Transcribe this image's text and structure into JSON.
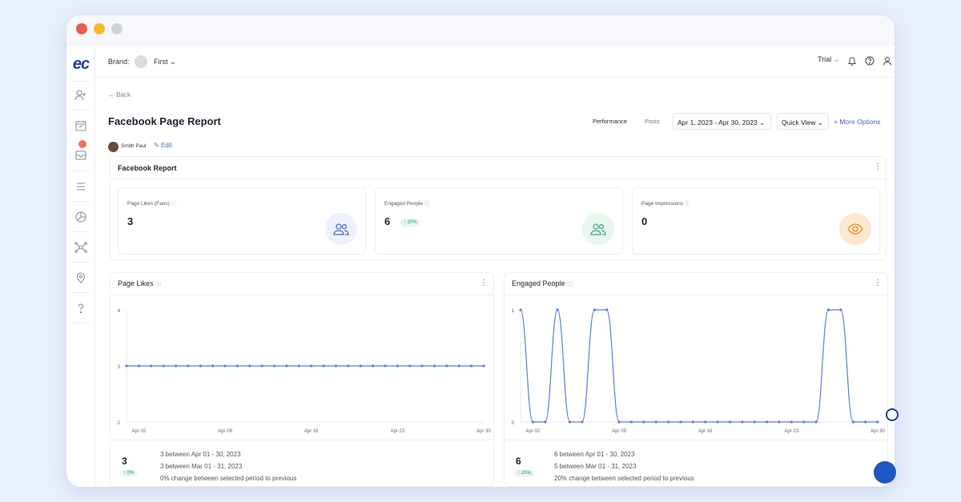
{
  "topbar": {
    "brand_label": "Brand:",
    "brand_name": "First",
    "plan_label": "Trial"
  },
  "sidebar": {
    "logo_text": "ec",
    "icons": [
      "add-user-icon",
      "calendar-icon",
      "inbox-icon",
      "list-icon",
      "pie-chart-icon",
      "network-icon",
      "location-icon",
      "help-icon"
    ]
  },
  "page": {
    "back_label": "Back",
    "title": "Facebook Page Report",
    "tabs": [
      "Performance",
      "Posts"
    ],
    "date_range": "Apr 1, 2023 - Apr 30, 2023",
    "quick_view": "Quick View",
    "more_options": "More Options",
    "author": "Smith Paul",
    "edit_label": "Edit"
  },
  "report": {
    "title": "Facebook Report",
    "metrics": [
      {
        "label": "Page Likes (Fans)",
        "value": "3",
        "change": null,
        "icon": "users-icon",
        "accent": "#4767c7",
        "bg": "#eef1fb"
      },
      {
        "label": "Engaged People",
        "value": "6",
        "change": "20%",
        "icon": "users-icon",
        "accent": "#3eaa76",
        "bg": "#e8f6ee"
      },
      {
        "label": "Page Impressions",
        "value": "0",
        "change": null,
        "icon": "eye-icon",
        "accent": "#f08a24",
        "bg": "#fde8d0"
      }
    ]
  },
  "chart_data": [
    {
      "type": "line",
      "title": "Page Likes",
      "xticks": [
        "Apr 02",
        "Apr 09",
        "Apr 16",
        "Apr 23",
        "Apr 30"
      ],
      "yticks": [
        "2",
        "3",
        "4"
      ],
      "ylim": [
        2,
        4
      ],
      "x": [
        1,
        2,
        3,
        4,
        5,
        6,
        7,
        8,
        9,
        10,
        11,
        12,
        13,
        14,
        15,
        16,
        17,
        18,
        19,
        20,
        21,
        22,
        23,
        24,
        25,
        26,
        27,
        28,
        29,
        30
      ],
      "series": [
        {
          "values": [
            3,
            3,
            3,
            3,
            3,
            3,
            3,
            3,
            3,
            3,
            3,
            3,
            3,
            3,
            3,
            3,
            3,
            3,
            3,
            3,
            3,
            3,
            3,
            3,
            3,
            3,
            3,
            3,
            3,
            3
          ]
        }
      ],
      "color": "#5b7ed6",
      "summary": {
        "value": "3",
        "change": "0%",
        "line1": "3 between Apr 01 - 30, 2023",
        "line2": "3 between Mar 01 - 31, 2023",
        "line3": "0% change between selected period to previous"
      }
    },
    {
      "type": "line",
      "title": "Engaged People",
      "xticks": [
        "Apr 02",
        "Apr 09",
        "Apr 16",
        "Apr 23",
        "Apr 30"
      ],
      "yticks": [
        "0",
        "1"
      ],
      "ylim": [
        0,
        1
      ],
      "x": [
        1,
        2,
        3,
        4,
        5,
        6,
        7,
        8,
        9,
        10,
        11,
        12,
        13,
        14,
        15,
        16,
        17,
        18,
        19,
        20,
        21,
        22,
        23,
        24,
        25,
        26,
        27,
        28,
        29,
        30
      ],
      "series": [
        {
          "values": [
            1,
            0,
            0,
            1,
            0,
            0,
            1,
            1,
            0,
            0,
            0,
            0,
            0,
            0,
            0,
            0,
            0,
            0,
            0,
            0,
            0,
            0,
            0,
            0,
            0,
            1,
            1,
            0,
            0,
            0
          ]
        }
      ],
      "color": "#5b7ed6",
      "summary": {
        "value": "6",
        "change": "20%",
        "line1": "6 between Apr 01 - 30, 2023",
        "line2": "5 between Mar 01 - 31, 2023",
        "line3": "20% change between selected period to previous"
      }
    }
  ]
}
